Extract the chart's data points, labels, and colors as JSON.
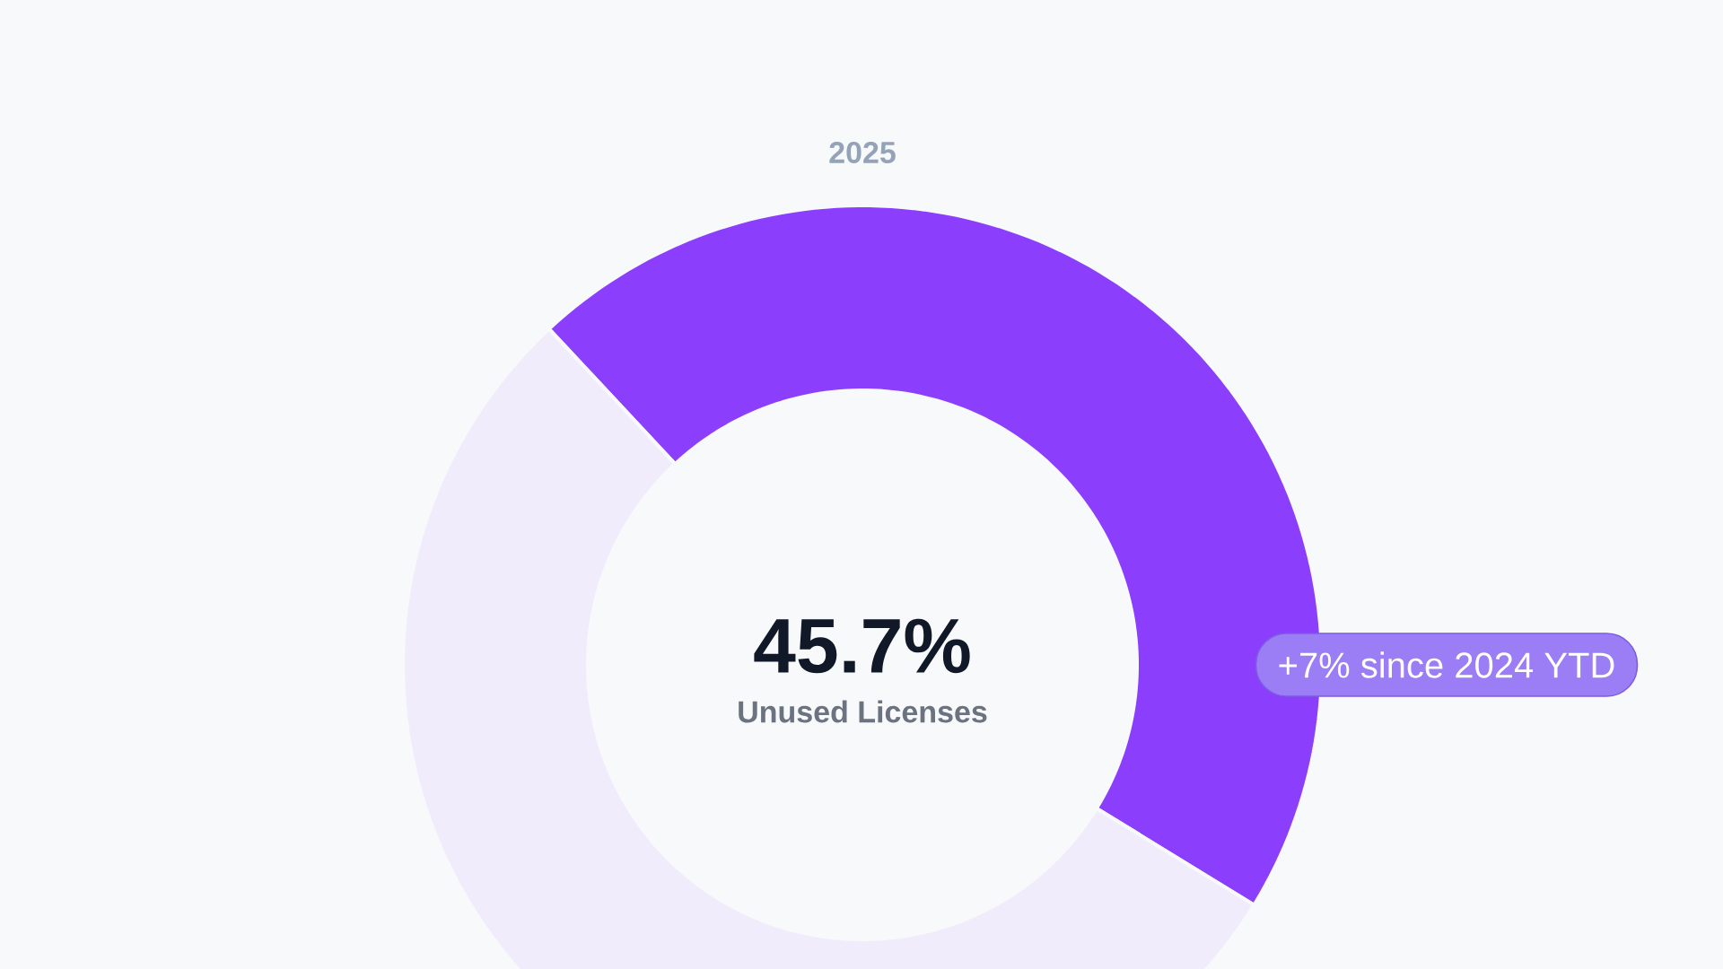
{
  "chart_data": {
    "type": "donut",
    "title": "2025",
    "categories": [
      null,
      null
    ],
    "values": [
      45.7,
      54.3
    ],
    "colors": [
      "#8b3ffc",
      "#f1ecfc"
    ],
    "value_labels": [
      "45.7%",
      null
    ],
    "annotations": [
      "Unused Licenses",
      "+7% since 2024 YTD"
    ]
  }
}
